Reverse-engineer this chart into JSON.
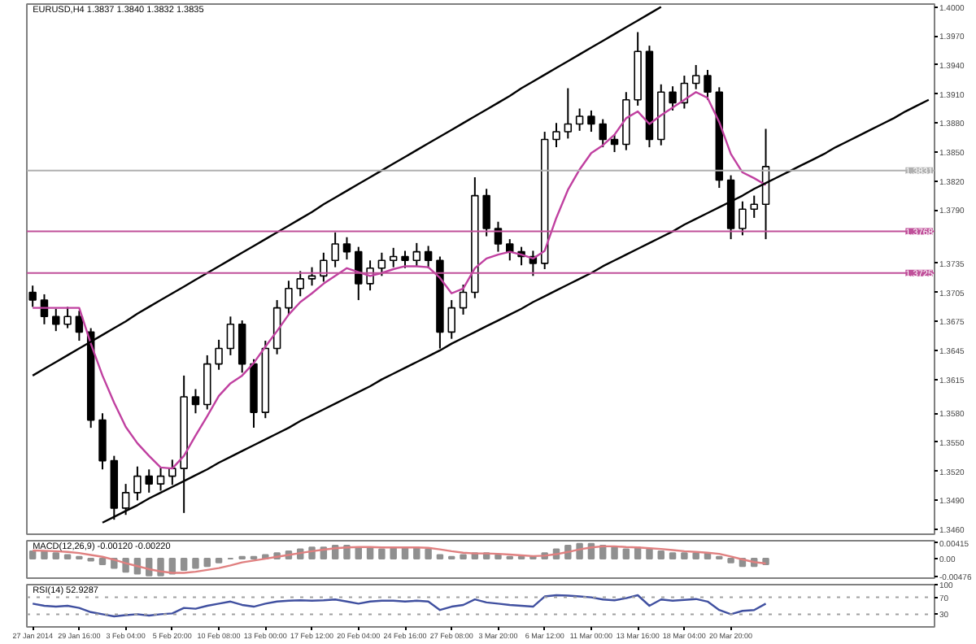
{
  "chart_data": [
    {
      "type": "candlestick",
      "title": "EURUSD,H4 1.3837 1.3840 1.3832 1.3835",
      "grid": false,
      "categories": [
        null,
        null,
        null,
        null,
        null,
        null,
        null,
        null,
        null,
        null,
        null,
        null,
        null,
        null,
        null,
        null,
        null,
        null,
        null,
        null,
        null,
        null,
        null,
        null,
        null,
        null,
        null,
        null,
        null,
        null,
        null,
        null,
        null,
        null,
        null,
        null,
        null,
        null,
        null,
        null,
        null,
        null,
        null,
        null,
        null,
        null,
        null,
        null,
        null,
        null,
        null,
        null,
        null,
        null,
        null,
        null,
        null,
        null,
        null,
        null,
        null,
        null,
        null,
        null,
        null,
        null,
        null,
        null,
        null,
        null,
        null,
        null,
        null,
        null,
        null,
        null,
        null,
        null
      ],
      "ohlc": [
        [
          1.3705,
          1.3712,
          1.369,
          1.3697
        ],
        [
          1.3697,
          1.3703,
          1.3672,
          1.368
        ],
        [
          1.368,
          1.3688,
          1.3665,
          1.3672
        ],
        [
          1.3672,
          1.369,
          1.3668,
          1.368
        ],
        [
          1.368,
          1.3686,
          1.3655,
          1.3664
        ],
        [
          1.3664,
          1.3668,
          1.3565,
          1.3573
        ],
        [
          1.3573,
          1.358,
          1.3522,
          1.3531
        ],
        [
          1.3531,
          1.3536,
          1.347,
          1.3482
        ],
        [
          1.3482,
          1.3507,
          1.3475,
          1.3498
        ],
        [
          1.3498,
          1.3525,
          1.349,
          1.3515
        ],
        [
          1.3515,
          1.3522,
          1.3498,
          1.3507
        ],
        [
          1.3507,
          1.3524,
          1.35,
          1.3515
        ],
        [
          1.3515,
          1.3532,
          1.3506,
          1.3523
        ],
        [
          1.3523,
          1.3619,
          1.3477,
          1.3597
        ],
        [
          1.3597,
          1.3605,
          1.358,
          1.3589
        ],
        [
          1.3589,
          1.364,
          1.3584,
          1.3631
        ],
        [
          1.3631,
          1.3656,
          1.3625,
          1.3647
        ],
        [
          1.3647,
          1.368,
          1.364,
          1.3672
        ],
        [
          1.3672,
          1.3676,
          1.3622,
          1.3631
        ],
        [
          1.3631,
          1.3636,
          1.3565,
          1.3581
        ],
        [
          1.3581,
          1.3655,
          1.3575,
          1.3647
        ],
        [
          1.3647,
          1.3697,
          1.3641,
          1.3689
        ],
        [
          1.3689,
          1.3717,
          1.3682,
          1.3709
        ],
        [
          1.3709,
          1.3727,
          1.3701,
          1.3719
        ],
        [
          1.3719,
          1.3731,
          1.3712,
          1.3722
        ],
        [
          1.3722,
          1.3746,
          1.3716,
          1.3738
        ],
        [
          1.3738,
          1.3767,
          1.3731,
          1.3755
        ],
        [
          1.3755,
          1.3762,
          1.3739,
          1.3747
        ],
        [
          1.3747,
          1.3752,
          1.3697,
          1.3714
        ],
        [
          1.3714,
          1.3738,
          1.3707,
          1.373
        ],
        [
          1.373,
          1.3746,
          1.3722,
          1.3738
        ],
        [
          1.3738,
          1.3751,
          1.3731,
          1.3742
        ],
        [
          1.3742,
          1.3748,
          1.373,
          1.3738
        ],
        [
          1.3738,
          1.3756,
          1.3732,
          1.3747
        ],
        [
          1.3747,
          1.3753,
          1.373,
          1.3738
        ],
        [
          1.3738,
          1.3742,
          1.3647,
          1.3664
        ],
        [
          1.3664,
          1.3697,
          1.3657,
          1.3689
        ],
        [
          1.3689,
          1.3713,
          1.3682,
          1.3705
        ],
        [
          1.3705,
          1.3824,
          1.3699,
          1.3805
        ],
        [
          1.3805,
          1.3812,
          1.3763,
          1.3771
        ],
        [
          1.3771,
          1.3778,
          1.3747,
          1.3755
        ],
        [
          1.3755,
          1.376,
          1.3738,
          1.3747
        ],
        [
          1.3747,
          1.3752,
          1.3733,
          1.3742
        ],
        [
          1.3742,
          1.3748,
          1.3722,
          1.3735
        ],
        [
          1.3735,
          1.3871,
          1.3729,
          1.3863
        ],
        [
          1.3863,
          1.388,
          1.3855,
          1.3871
        ],
        [
          1.3871,
          1.3916,
          1.3864,
          1.3879
        ],
        [
          1.3879,
          1.3895,
          1.3872,
          1.3887
        ],
        [
          1.3887,
          1.3893,
          1.3871,
          1.3879
        ],
        [
          1.3879,
          1.3884,
          1.3855,
          1.3863
        ],
        [
          1.3863,
          1.3868,
          1.385,
          1.3858
        ],
        [
          1.3858,
          1.3912,
          1.3852,
          1.3904
        ],
        [
          1.3904,
          1.3974,
          1.3898,
          1.3954
        ],
        [
          1.3954,
          1.396,
          1.3855,
          1.3863
        ],
        [
          1.3863,
          1.392,
          1.3857,
          1.3912
        ],
        [
          1.3912,
          1.3918,
          1.3893,
          1.3901
        ],
        [
          1.3901,
          1.3929,
          1.3895,
          1.3921
        ],
        [
          1.3921,
          1.394,
          1.3915,
          1.3929
        ],
        [
          1.3929,
          1.3935,
          1.3904,
          1.3912
        ],
        [
          1.3912,
          1.3917,
          1.3813,
          1.3821
        ],
        [
          1.3821,
          1.3826,
          1.376,
          1.3771
        ],
        [
          1.3771,
          1.3799,
          1.3764,
          1.3791
        ],
        [
          1.3791,
          1.3805,
          1.3782,
          1.3796
        ],
        [
          1.3796,
          1.3874,
          1.376,
          1.3835
        ],
        null,
        null,
        null,
        null,
        null,
        null,
        null,
        null,
        null,
        null,
        null,
        null,
        null,
        null
      ],
      "series": [
        {
          "type": "line",
          "color": "#c040a0",
          "values": [
            1.3689,
            1.3689,
            1.3689,
            1.3689,
            1.3689,
            1.3652,
            1.3619,
            1.3591,
            1.3566,
            1.3549,
            1.3536,
            1.3524,
            1.3523,
            1.3536,
            1.3557,
            1.3577,
            1.3598,
            1.3611,
            1.3619,
            1.3632,
            1.3649,
            1.3665,
            1.3682,
            1.3695,
            1.3704,
            1.3714,
            1.3722,
            1.373,
            1.3726,
            1.3722,
            1.3725,
            1.3729,
            1.3732,
            1.3732,
            1.3731,
            1.372,
            1.3704,
            1.3709,
            1.373,
            1.374,
            1.3744,
            1.3747,
            1.3744,
            1.374,
            1.3748,
            1.3782,
            1.3811,
            1.3832,
            1.3849,
            1.3857,
            1.3868,
            1.3885,
            1.3892,
            1.3879,
            1.3888,
            1.3896,
            1.3904,
            1.3912,
            1.3906,
            1.3881,
            1.3848,
            1.3829,
            1.3823,
            1.3816,
            null,
            null,
            null,
            null,
            null,
            null,
            null,
            null,
            null,
            null,
            null,
            null,
            null,
            null
          ]
        },
        {
          "type": "line",
          "color": "#000000",
          "values": [
            1.3619,
            1.3626,
            1.3633,
            1.364,
            1.3647,
            1.3654,
            1.3661,
            1.3668,
            1.3675,
            1.3683,
            1.369,
            1.3697,
            1.3704,
            1.3711,
            1.3718,
            1.3725,
            1.3732,
            1.3739,
            1.3746,
            1.3753,
            1.376,
            1.3767,
            1.3774,
            1.3781,
            1.3788,
            1.3796,
            1.3803,
            1.381,
            1.3817,
            1.3824,
            1.3831,
            1.3838,
            1.3845,
            1.3852,
            1.3859,
            1.3866,
            1.3873,
            1.388,
            1.3887,
            1.3894,
            1.3901,
            1.3908,
            1.3916,
            1.3923,
            1.393,
            1.3937,
            1.3944,
            1.3951,
            1.3958,
            1.3965,
            1.3972,
            1.3979,
            1.3986,
            1.3993,
            1.4,
            null,
            null,
            null,
            null,
            null,
            null,
            null,
            null,
            null,
            null,
            null,
            null,
            null,
            null,
            null,
            null,
            null,
            null,
            null,
            null,
            null,
            null,
            null
          ]
        },
        {
          "type": "line",
          "color": "#000000",
          "values": [
            null,
            null,
            null,
            null,
            null,
            null,
            1.3467,
            1.3473,
            1.3479,
            1.3485,
            1.3492,
            1.3498,
            1.3504,
            1.351,
            1.3516,
            1.3522,
            1.3529,
            1.3535,
            1.3541,
            1.3547,
            1.3553,
            1.3559,
            1.3565,
            1.3572,
            1.3578,
            1.3584,
            1.359,
            1.3596,
            1.3602,
            1.3608,
            1.3615,
            1.3621,
            1.3627,
            1.3633,
            1.3639,
            1.3645,
            1.3652,
            1.3658,
            1.3664,
            1.367,
            1.3676,
            1.3682,
            1.3688,
            1.3695,
            1.3701,
            1.3707,
            1.3713,
            1.3719,
            1.3725,
            1.3732,
            1.3738,
            1.3744,
            1.375,
            1.3756,
            1.3762,
            1.3768,
            1.3775,
            1.3781,
            1.3787,
            1.3793,
            1.3799,
            1.3805,
            1.3812,
            1.3818,
            1.3824,
            1.383,
            1.3836,
            1.3842,
            1.3848,
            1.3855,
            1.3861,
            1.3867,
            1.3873,
            1.3879,
            1.3885,
            1.3892,
            1.3898,
            1.3904
          ]
        }
      ],
      "ref_lines": [
        {
          "axis": "y",
          "value": 1.3831,
          "label": "1.3831",
          "color": "#b0b0b0"
        },
        {
          "axis": "y",
          "value": 1.3768,
          "label": "1.3768",
          "color": "#c0509a"
        },
        {
          "axis": "y",
          "value": 1.3725,
          "label": "1.3725",
          "color": "#c0509a"
        }
      ],
      "ylim": [
        1.3455,
        1.4003
      ],
      "yticks": [
        {
          "value": 1.4,
          "label": "1.4000"
        },
        {
          "value": 1.397,
          "label": "1.3970"
        },
        {
          "value": 1.394,
          "label": "1.3940"
        },
        {
          "value": 1.391,
          "label": "1.3910"
        },
        {
          "value": 1.388,
          "label": "1.3880"
        },
        {
          "value": 1.385,
          "label": "1.3850"
        },
        {
          "value": 1.382,
          "label": "1.3820"
        },
        {
          "value": 1.379,
          "label": "1.3790"
        },
        {
          "value": 1.3735,
          "label": "1.3735"
        },
        {
          "value": 1.3705,
          "label": "1.3705"
        },
        {
          "value": 1.3675,
          "label": "1.3675"
        },
        {
          "value": 1.3645,
          "label": "1.3645"
        },
        {
          "value": 1.3615,
          "label": "1.3615"
        },
        {
          "value": 1.358,
          "label": "1.3580"
        },
        {
          "value": 1.355,
          "label": "1.3550"
        },
        {
          "value": 1.352,
          "label": "1.3520"
        },
        {
          "value": 1.349,
          "label": "1.3490"
        },
        {
          "value": 1.346,
          "label": "1.3460"
        }
      ]
    },
    {
      "type": "bar",
      "title": "MACD(12,26,9) -0.00120 -0.00220",
      "grid": false,
      "categories": [
        null,
        null,
        null,
        null,
        null,
        null,
        null,
        null,
        null,
        null,
        null,
        null,
        null,
        null,
        null,
        null,
        null,
        null,
        null,
        null,
        null,
        null,
        null,
        null,
        null,
        null,
        null,
        null,
        null,
        null,
        null,
        null,
        null,
        null,
        null,
        null,
        null,
        null,
        null,
        null,
        null,
        null,
        null,
        null,
        null,
        null,
        null,
        null,
        null,
        null,
        null,
        null,
        null,
        null,
        null,
        null,
        null,
        null,
        null,
        null,
        null,
        null,
        null,
        null,
        null,
        null,
        null,
        null,
        null,
        null,
        null,
        null,
        null,
        null,
        null,
        null,
        null,
        null
      ],
      "series": [
        {
          "type": "bar",
          "color": "#909090",
          "values": [
            0.002,
            0.002,
            0.0015,
            0.001,
            0.0005,
            -0.0005,
            -0.0015,
            -0.0025,
            -0.0035,
            -0.004,
            -0.0045,
            -0.0045,
            -0.004,
            -0.003,
            -0.0025,
            -0.002,
            -0.001,
            0,
            0.0005,
            0.0005,
            0.001,
            0.0015,
            0.002,
            0.0025,
            0.003,
            0.003,
            0.0035,
            0.0035,
            0.003,
            0.003,
            0.0025,
            0.003,
            0.003,
            0.003,
            0.0025,
            0.001,
            0.0005,
            0.001,
            0.0015,
            0.0015,
            0.001,
            0.0005,
            0.0005,
            0.0005,
            0.0015,
            0.0025,
            0.0035,
            0.004,
            0.004,
            0.0035,
            0.003,
            0.0025,
            0.003,
            0.0025,
            0.002,
            0.0015,
            0.0015,
            0.0015,
            0.0015,
            0.0005,
            -0.001,
            -0.002,
            -0.002,
            -0.0015,
            null,
            null,
            null,
            null,
            null,
            null,
            null,
            null,
            null,
            null,
            null,
            null,
            null,
            null
          ]
        },
        {
          "type": "line",
          "color": "#e08080",
          "values": [
            0.0022,
            0.0021,
            0.002,
            0.0018,
            0.0015,
            0.001,
            0.0005,
            -0.0003,
            -0.0012,
            -0.002,
            -0.0028,
            -0.0034,
            -0.0038,
            -0.0038,
            -0.0035,
            -0.003,
            -0.0025,
            -0.0018,
            -0.001,
            -0.0005,
            0,
            0.0005,
            0.001,
            0.0015,
            0.002,
            0.0024,
            0.0028,
            0.003,
            0.0031,
            0.0031,
            0.003,
            0.003,
            0.003,
            0.003,
            0.0029,
            0.0025,
            0.002,
            0.0016,
            0.0014,
            0.0014,
            0.0013,
            0.0011,
            0.0009,
            0.0007,
            0.0008,
            0.0012,
            0.0018,
            0.0025,
            0.003,
            0.0033,
            0.0033,
            0.0031,
            0.003,
            0.0028,
            0.0026,
            0.0023,
            0.002,
            0.0018,
            0.0016,
            0.0013,
            0.0006,
            -0.0002,
            -0.0009,
            -0.0013,
            null,
            null,
            null,
            null,
            null,
            null,
            null,
            null,
            null,
            null,
            null,
            null,
            null,
            null
          ]
        }
      ],
      "ylim": [
        -0.0052,
        0.0048
      ],
      "yticks": [
        0.00415,
        {
          "value": 0,
          "label": "0.00"
        },
        -0.00476
      ]
    },
    {
      "type": "line",
      "title": "RSI(14) 52.9287",
      "color": "#4050a0",
      "grid": false,
      "categories": [
        "27 Jan 2014",
        null,
        null,
        null,
        "29 Jan 16:00",
        null,
        null,
        null,
        "3 Feb 04:00",
        null,
        null,
        null,
        "5 Feb 20:00",
        null,
        null,
        null,
        "10 Feb 08:00",
        null,
        null,
        null,
        "13 Feb 00:00",
        null,
        null,
        null,
        "17 Feb 12:00",
        null,
        null,
        null,
        "20 Feb 04:00",
        null,
        null,
        null,
        "24 Feb 16:00",
        null,
        null,
        null,
        "27 Feb 08:00",
        null,
        null,
        null,
        "3 Mar 20:00",
        null,
        null,
        null,
        "6 Mar 12:00",
        null,
        null,
        null,
        "11 Mar 00:00",
        null,
        null,
        null,
        "13 Mar 16:00",
        null,
        null,
        null,
        "18 Mar 04:00",
        null,
        null,
        null,
        "20 Mar 20:00",
        null,
        null,
        null,
        null,
        null,
        null,
        null,
        null,
        null,
        null,
        null,
        null,
        null,
        null,
        null,
        null,
        null
      ],
      "values": [
        55,
        50,
        48,
        50,
        45,
        35,
        30,
        25,
        28,
        30,
        27,
        30,
        32,
        45,
        43,
        50,
        55,
        60,
        52,
        48,
        55,
        60,
        62,
        63,
        62,
        63,
        65,
        60,
        55,
        60,
        62,
        62,
        60,
        62,
        60,
        40,
        48,
        52,
        65,
        58,
        55,
        52,
        50,
        48,
        72,
        75,
        74,
        72,
        70,
        65,
        63,
        68,
        75,
        50,
        65,
        62,
        64,
        66,
        60,
        40,
        30,
        38,
        40,
        55,
        null,
        null,
        null,
        null,
        null,
        null,
        null,
        null,
        null,
        null,
        null,
        null,
        null,
        null
      ],
      "ref_lines": [
        {
          "axis": "y",
          "value": 70,
          "color": "#a0a0a0",
          "line_style": "dotted"
        },
        {
          "axis": "y",
          "value": 30,
          "color": "#a0a0a0",
          "line_style": "dotted"
        }
      ],
      "ylim": [
        0,
        100
      ],
      "yticks": [
        100,
        70,
        30
      ]
    }
  ]
}
